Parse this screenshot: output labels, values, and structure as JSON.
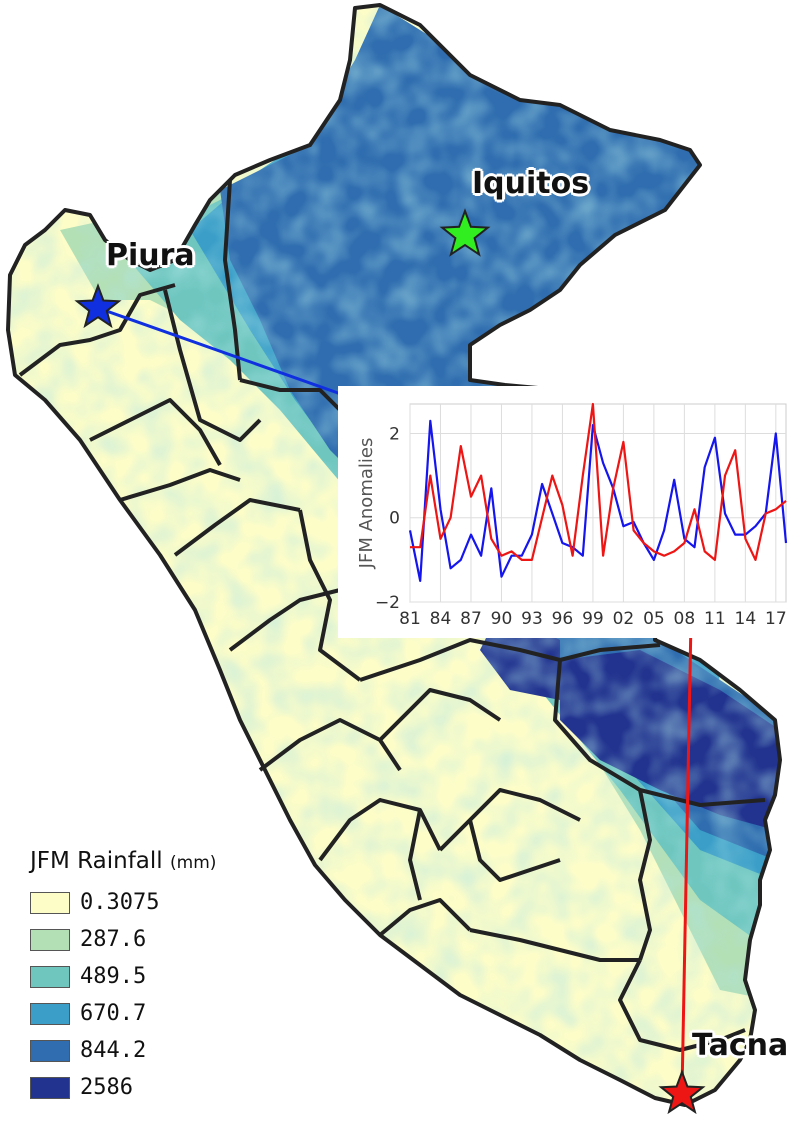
{
  "colors": {
    "c1": "#fdfdc8",
    "c2": "#b4e0b6",
    "c3": "#6ec6bf",
    "c4": "#3a9ec8",
    "c5": "#2f6db0",
    "c6": "#22338f",
    "border": "#222222",
    "piura": "#1030e0",
    "iquitos": "#30ee20",
    "tacna": "#ee1515"
  },
  "cities": [
    {
      "name": "Iquitos",
      "marker": "green-star-icon"
    },
    {
      "name": "Piura",
      "marker": "blue-star-icon"
    },
    {
      "name": "Tacna",
      "marker": "red-star-icon"
    }
  ],
  "legend": {
    "title": "JFM Rainfall",
    "unit": "(mm)",
    "items": [
      {
        "label": "0.3075",
        "color": "#fdfdc8"
      },
      {
        "label": "287.6",
        "color": "#b4e0b6"
      },
      {
        "label": "489.5",
        "color": "#6ec6bf"
      },
      {
        "label": "670.7",
        "color": "#3a9ec8"
      },
      {
        "label": "844.2",
        "color": "#2f6db0"
      },
      {
        "label": "2586",
        "color": "#22338f"
      }
    ]
  },
  "chart_data": {
    "type": "line",
    "ylabel": "JFM Anomalies",
    "xlabel": "",
    "ylim": [
      -2,
      2.7
    ],
    "yticks": [
      -2,
      0,
      2
    ],
    "xticks": [
      "81",
      "84",
      "87",
      "90",
      "93",
      "96",
      "99",
      "02",
      "05",
      "08",
      "11",
      "14",
      "17"
    ],
    "x": [
      1981,
      1982,
      1983,
      1984,
      1985,
      1986,
      1987,
      1988,
      1989,
      1990,
      1991,
      1992,
      1993,
      1994,
      1995,
      1996,
      1997,
      1998,
      1999,
      2000,
      2001,
      2002,
      2003,
      2004,
      2005,
      2006,
      2007,
      2008,
      2009,
      2010,
      2011,
      2012,
      2013,
      2014,
      2015,
      2016,
      2017,
      2018
    ],
    "grid": true,
    "series": [
      {
        "name": "",
        "color": "#1515ee",
        "values": [
          -0.3,
          -1.5,
          2.3,
          0.2,
          -1.2,
          -1.0,
          -0.4,
          -0.9,
          0.7,
          -1.4,
          -0.9,
          -0.9,
          -0.4,
          0.8,
          0.1,
          -0.6,
          -0.7,
          -0.9,
          2.2,
          1.3,
          0.7,
          -0.2,
          -0.1,
          -0.6,
          -1.0,
          -0.3,
          0.9,
          -0.5,
          -0.7,
          1.2,
          1.9,
          0.1,
          -0.4,
          -0.4,
          -0.2,
          0.1,
          2.0,
          -0.6
        ]
      },
      {
        "name": "",
        "color": "#ee1515",
        "values": [
          -0.7,
          -0.7,
          1.0,
          -0.5,
          0.0,
          1.7,
          0.5,
          1.0,
          -0.5,
          -0.9,
          -0.8,
          -1.0,
          -1.0,
          0.0,
          1.0,
          0.3,
          -0.9,
          1.0,
          2.7,
          -0.9,
          0.7,
          1.8,
          -0.3,
          -0.6,
          -0.8,
          -0.9,
          -0.8,
          -0.6,
          0.2,
          -0.8,
          -1.0,
          1.0,
          1.6,
          -0.5,
          -1.0,
          0.1,
          0.2,
          0.4
        ]
      }
    ]
  }
}
